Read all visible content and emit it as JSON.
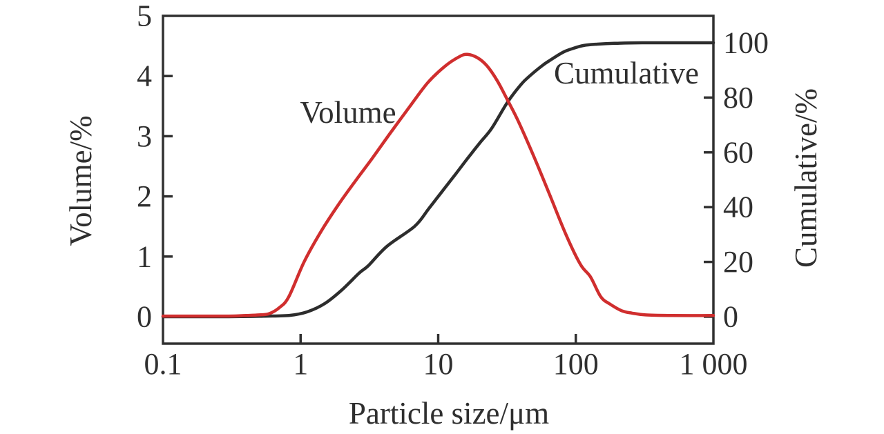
{
  "chart_data": {
    "type": "line",
    "title": "",
    "xlabel": "Particle size/μm",
    "ylabel_left": "Volume/%",
    "ylabel_right": "Cumulative/%",
    "x_scale": "log",
    "xlim": [
      0.1,
      1000
    ],
    "ylim_left": [
      0,
      5
    ],
    "ylim_right": [
      0,
      100
    ],
    "grid": "off",
    "legend_position": "inline-labels",
    "x_ticks": [
      {
        "value": 0.1,
        "label": "0.1"
      },
      {
        "value": 1,
        "label": "1"
      },
      {
        "value": 10,
        "label": "10"
      },
      {
        "value": 100,
        "label": "100"
      },
      {
        "value": 1000,
        "label": "1 000"
      }
    ],
    "y_left_ticks": [
      {
        "value": 0,
        "label": "0"
      },
      {
        "value": 1,
        "label": "1"
      },
      {
        "value": 2,
        "label": "2"
      },
      {
        "value": 3,
        "label": "3"
      },
      {
        "value": 4,
        "label": "4"
      },
      {
        "value": 5,
        "label": "5"
      }
    ],
    "y_right_ticks": [
      {
        "value": 0,
        "label": "0"
      },
      {
        "value": 20,
        "label": "20"
      },
      {
        "value": 40,
        "label": "40"
      },
      {
        "value": 60,
        "label": "60"
      },
      {
        "value": 80,
        "label": "80"
      },
      {
        "value": 100,
        "label": "100"
      }
    ],
    "series": [
      {
        "name": "Volume",
        "label_text": "Volume",
        "axis": "left",
        "color": "#d02e2e",
        "points": [
          [
            0.1,
            0.01
          ],
          [
            0.2,
            0.01
          ],
          [
            0.3,
            0.01
          ],
          [
            0.4,
            0.02
          ],
          [
            0.5,
            0.03
          ],
          [
            0.59,
            0.05
          ],
          [
            0.7,
            0.15
          ],
          [
            0.82,
            0.33
          ],
          [
            1.06,
            0.91
          ],
          [
            1.41,
            1.42
          ],
          [
            1.88,
            1.86
          ],
          [
            2.51,
            2.26
          ],
          [
            3.36,
            2.65
          ],
          [
            4.48,
            3.05
          ],
          [
            6.2,
            3.49
          ],
          [
            8.4,
            3.89
          ],
          [
            11.3,
            4.17
          ],
          [
            14.2,
            4.32
          ],
          [
            16.3,
            4.36
          ],
          [
            19.4,
            4.3
          ],
          [
            22.6,
            4.17
          ],
          [
            26.9,
            3.92
          ],
          [
            31.9,
            3.6
          ],
          [
            38,
            3.26
          ],
          [
            49.6,
            2.66
          ],
          [
            64,
            2.05
          ],
          [
            85,
            1.36
          ],
          [
            108,
            0.87
          ],
          [
            128,
            0.66
          ],
          [
            152,
            0.33
          ],
          [
            177,
            0.21
          ],
          [
            215,
            0.1
          ],
          [
            256,
            0.06
          ],
          [
            322,
            0.03
          ],
          [
            500,
            0.02
          ],
          [
            1000,
            0.02
          ]
        ]
      },
      {
        "name": "Cumulative",
        "label_text": "Cumulative",
        "axis": "right",
        "color": "#2d2d2d",
        "points": [
          [
            0.1,
            0
          ],
          [
            0.3,
            0
          ],
          [
            0.55,
            0.2
          ],
          [
            0.84,
            0.5
          ],
          [
            1.12,
            1.8
          ],
          [
            1.5,
            4.8
          ],
          [
            2.0,
            9.8
          ],
          [
            2.66,
            15.9
          ],
          [
            3.1,
            18.6
          ],
          [
            4.24,
            25.7
          ],
          [
            6.74,
            33.0
          ],
          [
            8.5,
            39.3
          ],
          [
            10.7,
            45.8
          ],
          [
            13.4,
            52.1
          ],
          [
            16.3,
            57.7
          ],
          [
            20.1,
            63.5
          ],
          [
            24.5,
            68.8
          ],
          [
            31.9,
            78.3
          ],
          [
            40.2,
            84.9
          ],
          [
            46.3,
            87.9
          ],
          [
            57.1,
            91.7
          ],
          [
            65.4,
            93.7
          ],
          [
            80.5,
            96.5
          ],
          [
            92.3,
            97.7
          ],
          [
            113.5,
            99.0
          ],
          [
            143,
            99.5
          ],
          [
            191,
            99.8
          ],
          [
            303,
            100
          ],
          [
            1000,
            100
          ]
        ]
      }
    ]
  }
}
